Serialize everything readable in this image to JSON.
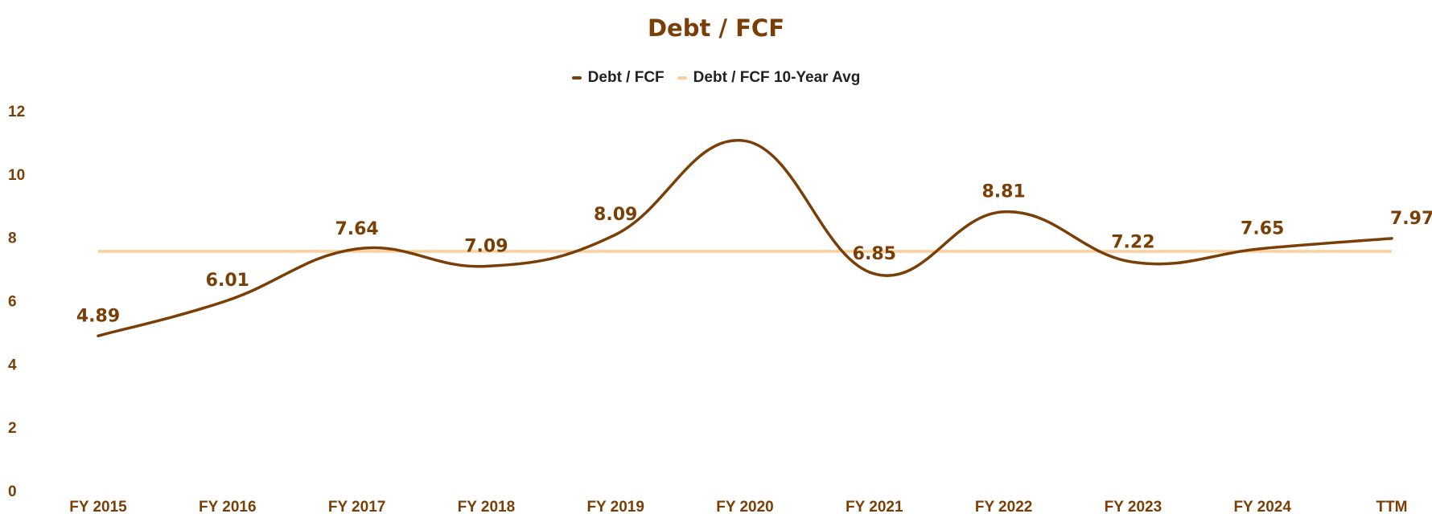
{
  "chart_data": {
    "type": "line",
    "title": "Debt / FCF",
    "categories": [
      "FY 2015",
      "FY 2016",
      "FY 2017",
      "FY 2018",
      "FY 2019",
      "FY 2020",
      "FY 2021",
      "FY 2022",
      "FY 2023",
      "FY 2024",
      "TTM"
    ],
    "series": [
      {
        "name": "Debt / FCF",
        "color": "#7a3f06",
        "values": [
          4.89,
          6.01,
          7.64,
          7.09,
          8.09,
          11.05,
          6.85,
          8.81,
          7.22,
          7.65,
          7.97
        ],
        "labels": [
          "4.89",
          "6.01",
          "7.64",
          "7.09",
          "8.09",
          "",
          "6.85",
          "8.81",
          "7.22",
          "7.65",
          "7.97"
        ]
      },
      {
        "name": "Debt / FCF 10-Year Avg",
        "color": "#fbcf9c",
        "values": [
          7.56,
          7.56,
          7.56,
          7.56,
          7.56,
          7.56,
          7.56,
          7.56,
          7.56,
          7.56,
          7.56
        ]
      }
    ],
    "yticks": [
      "0",
      "2",
      "4",
      "6",
      "8",
      "10",
      "12"
    ],
    "ylim": [
      0,
      12
    ],
    "grid": false,
    "legend_position": "top-center",
    "xlabel": "",
    "ylabel": ""
  }
}
